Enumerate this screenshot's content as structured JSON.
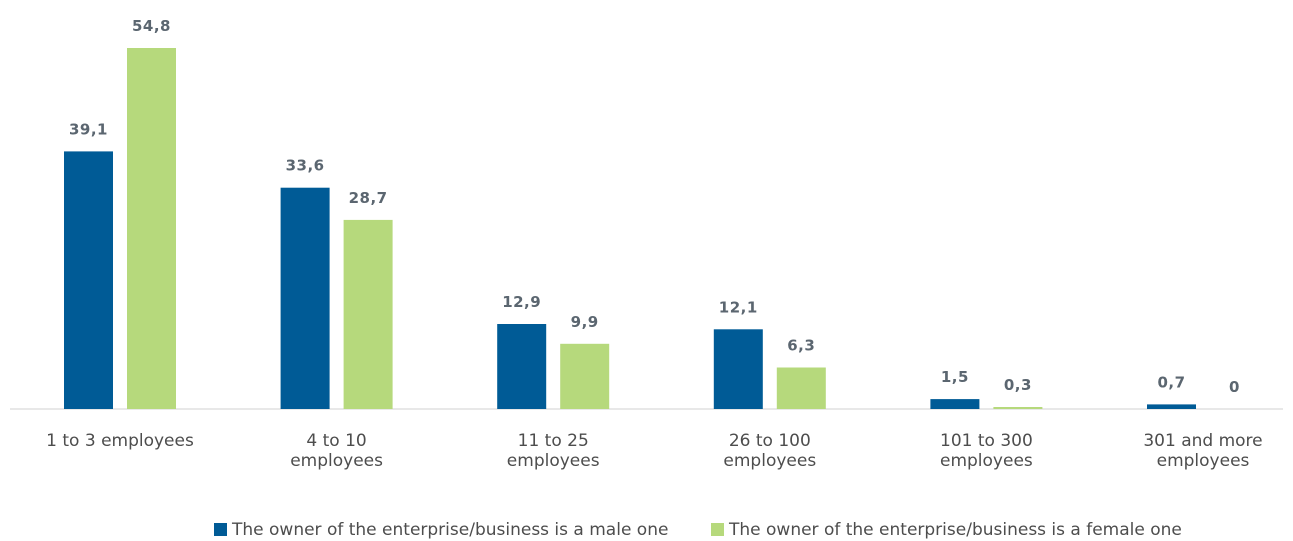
{
  "chart_data": {
    "type": "bar",
    "categories": [
      [
        "1 to 3 employees"
      ],
      [
        "4 to 10",
        "employees"
      ],
      [
        "11 to 25",
        "employees"
      ],
      [
        "26 to 100",
        "employees"
      ],
      [
        "101 to 300",
        "employees"
      ],
      [
        "301 and more",
        "employees"
      ]
    ],
    "series": [
      {
        "name": "The owner of the enterprise/business is a male one",
        "color": "#005b96",
        "values": [
          39.1,
          33.6,
          12.9,
          12.1,
          1.5,
          0.7
        ],
        "labels": [
          "39,1",
          "33,6",
          "12,9",
          "12,1",
          "1,5",
          "0,7"
        ]
      },
      {
        "name": "The owner of the enterprise/business is a female one",
        "color": "#b6d97c",
        "values": [
          54.8,
          28.7,
          9.9,
          6.3,
          0.3,
          0
        ],
        "labels": [
          "54,8",
          "28,7",
          "9,9",
          "6,3",
          "0,3",
          "0"
        ]
      }
    ],
    "ylim": [
      0,
      54.8
    ],
    "grid": false,
    "legend_position": "bottom"
  }
}
